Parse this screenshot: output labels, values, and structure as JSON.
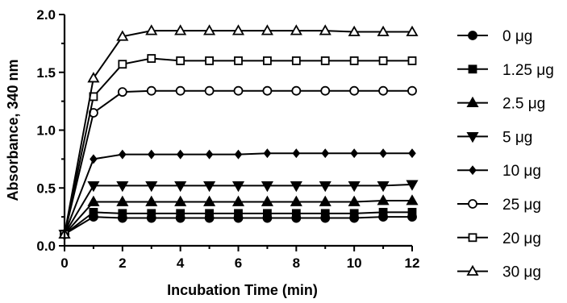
{
  "chart_data": {
    "type": "line",
    "title": "",
    "xlabel": "Incubation Time (min)",
    "ylabel": "Absorbance, 340 nm",
    "xlim": [
      0,
      12
    ],
    "ylim": [
      0,
      2.0
    ],
    "x_ticks": [
      "0",
      "2",
      "4",
      "6",
      "8",
      "10",
      "12"
    ],
    "y_ticks": [
      "0.0",
      "0.5",
      "1.0",
      "1.5",
      "2.0"
    ],
    "grid": false,
    "legend_position": "right",
    "x": [
      0,
      1,
      2,
      3,
      4,
      5,
      6,
      7,
      8,
      9,
      10,
      11,
      12
    ],
    "series": [
      {
        "name": "0 μg",
        "marker": "filled-circle",
        "values": [
          0.1,
          0.25,
          0.24,
          0.24,
          0.24,
          0.24,
          0.24,
          0.24,
          0.24,
          0.24,
          0.24,
          0.25,
          0.25
        ]
      },
      {
        "name": "1.25 μg",
        "marker": "filled-square",
        "values": [
          0.1,
          0.29,
          0.28,
          0.28,
          0.28,
          0.28,
          0.28,
          0.28,
          0.28,
          0.28,
          0.28,
          0.29,
          0.29
        ]
      },
      {
        "name": "2.5 μg",
        "marker": "filled-triangle-up",
        "values": [
          0.1,
          0.38,
          0.38,
          0.38,
          0.38,
          0.38,
          0.38,
          0.38,
          0.38,
          0.38,
          0.38,
          0.39,
          0.39
        ]
      },
      {
        "name": "5 μg",
        "marker": "filled-triangle-down",
        "values": [
          0.1,
          0.52,
          0.52,
          0.52,
          0.52,
          0.52,
          0.52,
          0.52,
          0.52,
          0.52,
          0.52,
          0.52,
          0.53
        ]
      },
      {
        "name": "10 μg",
        "marker": "filled-diamond",
        "values": [
          0.1,
          0.75,
          0.79,
          0.79,
          0.79,
          0.79,
          0.79,
          0.8,
          0.8,
          0.8,
          0.8,
          0.8,
          0.8
        ]
      },
      {
        "name": "25 μg",
        "marker": "open-circle",
        "values": [
          0.1,
          1.15,
          1.33,
          1.34,
          1.34,
          1.34,
          1.34,
          1.34,
          1.34,
          1.34,
          1.34,
          1.34,
          1.34
        ]
      },
      {
        "name": "20 μg",
        "marker": "open-square",
        "values": [
          0.1,
          1.29,
          1.57,
          1.62,
          1.6,
          1.6,
          1.6,
          1.6,
          1.6,
          1.6,
          1.6,
          1.6,
          1.6
        ]
      },
      {
        "name": "30 μg",
        "marker": "open-triangle-up",
        "values": [
          0.1,
          1.45,
          1.81,
          1.86,
          1.86,
          1.86,
          1.86,
          1.86,
          1.86,
          1.86,
          1.85,
          1.85,
          1.85
        ]
      }
    ]
  }
}
